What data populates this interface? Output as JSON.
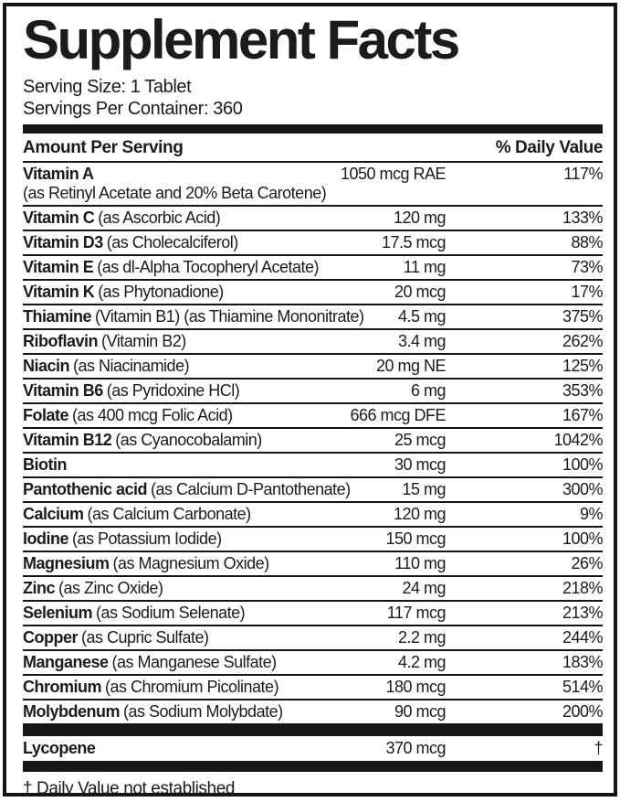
{
  "title": "Supplement Facts",
  "serving": {
    "size": "Serving Size: 1 Tablet",
    "per_container": "Servings Per Container: 360"
  },
  "columns": {
    "amount_header": "Amount Per Serving",
    "dv_header": "% Daily Value"
  },
  "rows": [
    {
      "name": "Vitamin A",
      "detail": "",
      "sub": "(as Retinyl Acetate and 20% Beta Carotene)",
      "amount": "1050 mcg RAE",
      "dv": "117%"
    },
    {
      "name": "Vitamin C",
      "detail": "(as Ascorbic Acid)",
      "sub": "",
      "amount": "120 mg",
      "dv": "133%"
    },
    {
      "name": "Vitamin D3",
      "detail": "(as Cholecalciferol)",
      "sub": "",
      "amount": "17.5 mcg",
      "dv": "88%"
    },
    {
      "name": "Vitamin E",
      "detail": "(as dl-Alpha Tocopheryl Acetate)",
      "sub": "",
      "amount": "11 mg",
      "dv": "73%"
    },
    {
      "name": "Vitamin K",
      "detail": "(as Phytonadione)",
      "sub": "",
      "amount": "20 mcg",
      "dv": "17%"
    },
    {
      "name": "Thiamine",
      "detail": "(Vitamin B1) (as Thiamine Mononitrate)",
      "sub": "",
      "amount": "4.5 mg",
      "dv": "375%"
    },
    {
      "name": "Riboflavin",
      "detail": "(Vitamin B2)",
      "sub": "",
      "amount": "3.4 mg",
      "dv": "262%"
    },
    {
      "name": "Niacin",
      "detail": "(as Niacinamide)",
      "sub": "",
      "amount": "20 mg NE",
      "dv": "125%"
    },
    {
      "name": "Vitamin B6",
      "detail": "(as Pyridoxine HCl)",
      "sub": "",
      "amount": "6 mg",
      "dv": "353%"
    },
    {
      "name": "Folate",
      "detail": "(as 400 mcg Folic Acid)",
      "sub": "",
      "amount": "666 mcg DFE",
      "dv": "167%"
    },
    {
      "name": "Vitamin B12",
      "detail": "(as Cyanocobalamin)",
      "sub": "",
      "amount": "25 mcg",
      "dv": "1042%"
    },
    {
      "name": "Biotin",
      "detail": "",
      "sub": "",
      "amount": "30 mcg",
      "dv": "100%"
    },
    {
      "name": "Pantothenic acid",
      "detail": "(as Calcium D-Pantothenate)",
      "sub": "",
      "amount": "15 mg",
      "dv": "300%"
    },
    {
      "name": "Calcium",
      "detail": "(as Calcium Carbonate)",
      "sub": "",
      "amount": "120 mg",
      "dv": "9%"
    },
    {
      "name": "Iodine",
      "detail": "(as Potassium Iodide)",
      "sub": "",
      "amount": "150 mcg",
      "dv": "100%"
    },
    {
      "name": "Magnesium",
      "detail": "(as Magnesium Oxide)",
      "sub": "",
      "amount": "110 mg",
      "dv": "26%"
    },
    {
      "name": "Zinc",
      "detail": "(as Zinc Oxide)",
      "sub": "",
      "amount": "24 mg",
      "dv": "218%"
    },
    {
      "name": "Selenium",
      "detail": "(as Sodium Selenate)",
      "sub": "",
      "amount": "117 mcg",
      "dv": "213%"
    },
    {
      "name": "Copper",
      "detail": "(as Cupric Sulfate)",
      "sub": "",
      "amount": "2.2 mg",
      "dv": "244%"
    },
    {
      "name": "Manganese",
      "detail": "(as Manganese Sulfate)",
      "sub": "",
      "amount": "4.2 mg",
      "dv": "183%"
    },
    {
      "name": "Chromium",
      "detail": "(as Chromium Picolinate)",
      "sub": "",
      "amount": "180 mcg",
      "dv": "514%"
    },
    {
      "name": "Molybdenum",
      "detail": "(as Sodium Molybdate)",
      "sub": "",
      "amount": "90 mcg",
      "dv": "200%"
    }
  ],
  "other_rows": [
    {
      "name": "Lycopene",
      "detail": "",
      "sub": "",
      "amount": "370 mcg",
      "dv": "†"
    }
  ],
  "footnote": "† Daily Value not established",
  "colors": {
    "text": "#1b1b1b",
    "rule": "#161616",
    "background": "#ffffff"
  }
}
